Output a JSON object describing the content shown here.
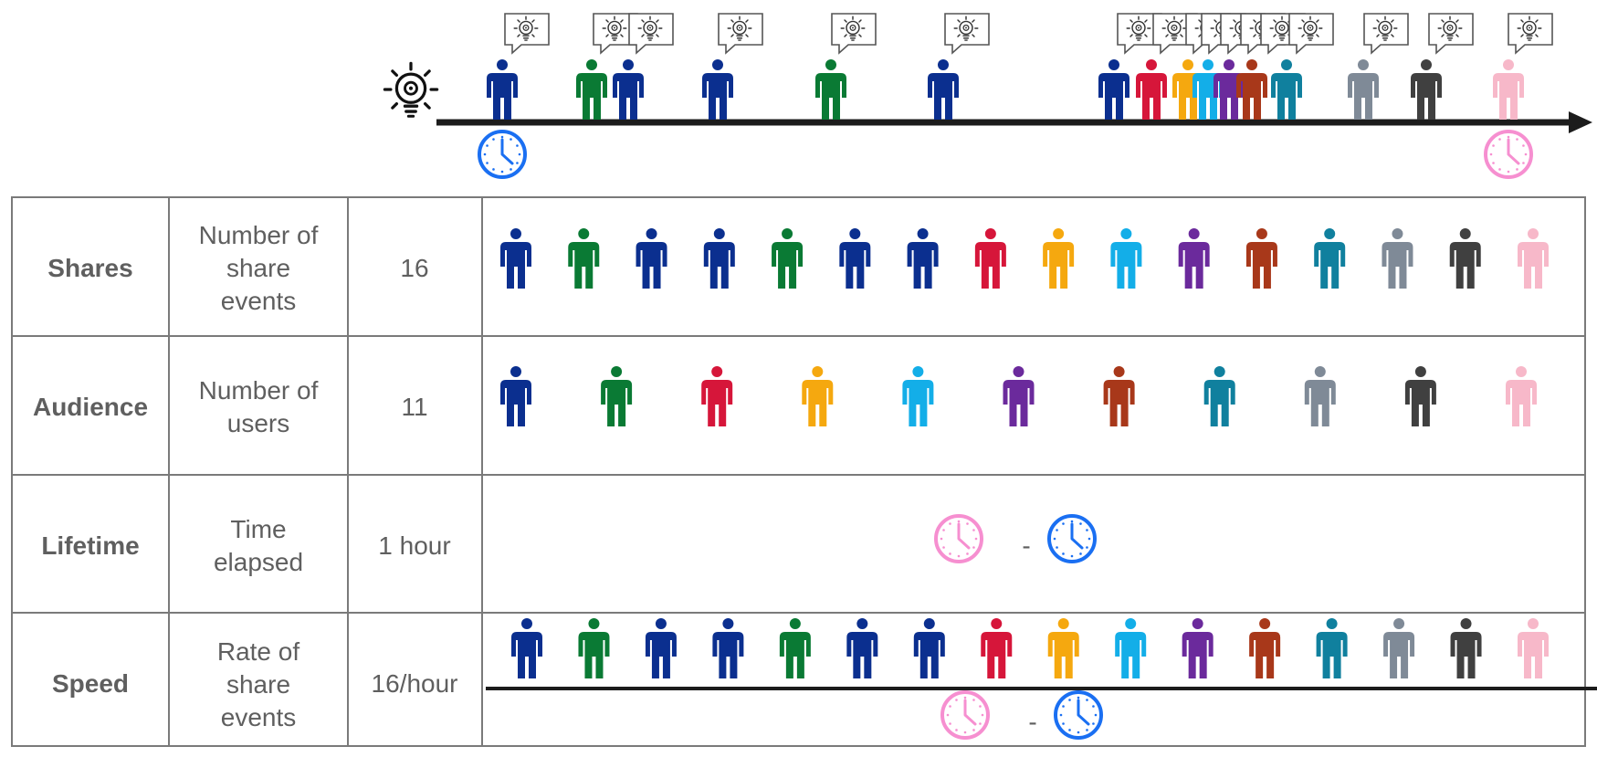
{
  "colors": {
    "navy": "#0b2f8f",
    "green": "#0a7a34",
    "red": "#d6163a",
    "orange": "#f5a80f",
    "sky": "#13aee8",
    "purple": "#6b2a9c",
    "rust": "#a8381a",
    "teal": "#10809e",
    "gray": "#7f8a97",
    "dark": "#404040",
    "pink": "#f7b8c9",
    "clock_start": "#1a6ff2",
    "clock_end": "#f68fd0",
    "axis": "#1c1c1c",
    "grid": "#7a7a7a"
  },
  "timeline": {
    "idea_icon": "lightbulb-gear-icon",
    "share_icon": "speech-bubble-idea-icon",
    "start_icon": "clock-icon",
    "end_icon": "clock-icon",
    "shares": [
      "navy",
      "green",
      "navy",
      "navy",
      "green",
      "navy",
      "navy",
      "red",
      "orange",
      "sky",
      "purple",
      "rust",
      "teal",
      "gray",
      "dark",
      "pink"
    ]
  },
  "rows": [
    {
      "metric": "Shares",
      "description": [
        "Number of",
        "share",
        "events"
      ],
      "value": "16",
      "people": [
        "navy",
        "green",
        "navy",
        "navy",
        "green",
        "navy",
        "navy",
        "red",
        "orange",
        "sky",
        "purple",
        "rust",
        "teal",
        "gray",
        "dark",
        "pink"
      ]
    },
    {
      "metric": "Audience",
      "description": [
        "Number of",
        "users"
      ],
      "value": "11",
      "people": [
        "navy",
        "green",
        "red",
        "orange",
        "sky",
        "purple",
        "rust",
        "teal",
        "gray",
        "dark",
        "pink"
      ]
    },
    {
      "metric": "Lifetime",
      "description": [
        "Time",
        "elapsed"
      ],
      "value": "1 hour",
      "operator": "-"
    },
    {
      "metric": "Speed",
      "description": [
        "Rate of",
        "share",
        "events"
      ],
      "value": "16/hour",
      "people": [
        "navy",
        "green",
        "navy",
        "navy",
        "green",
        "navy",
        "navy",
        "red",
        "orange",
        "sky",
        "purple",
        "rust",
        "teal",
        "gray",
        "dark",
        "pink"
      ],
      "operator": "-"
    }
  ]
}
